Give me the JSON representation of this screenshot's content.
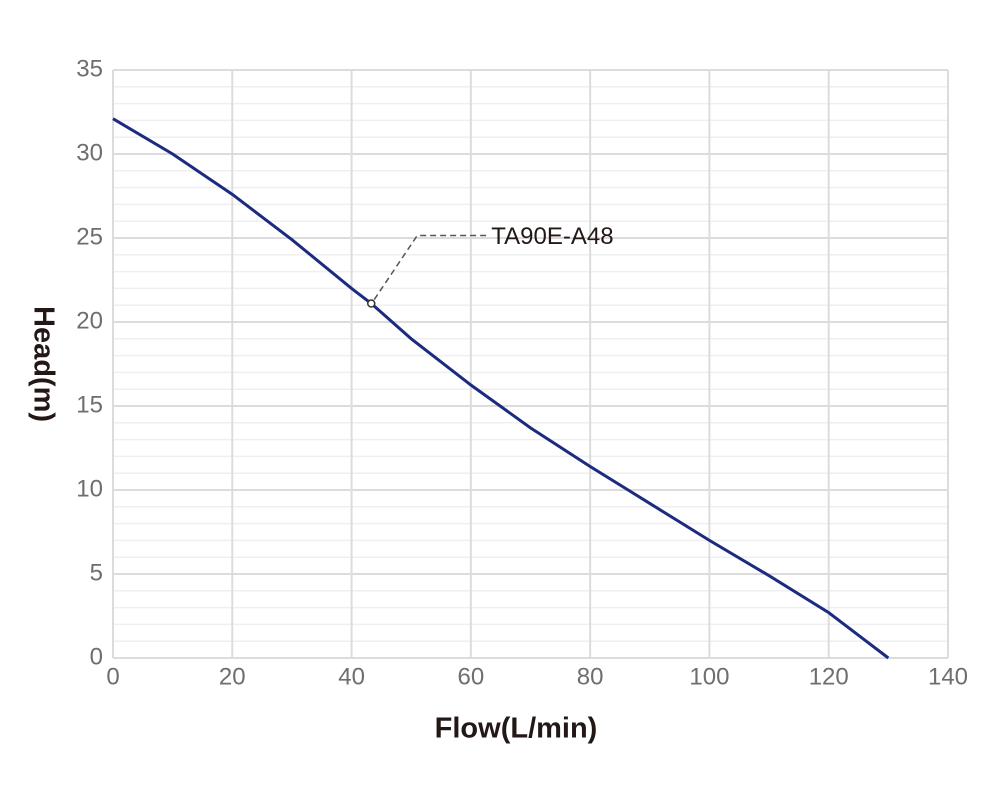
{
  "chart_data": {
    "type": "line",
    "xlabel": "Flow(L/min)",
    "ylabel": "Head(m)",
    "x": [
      0,
      10,
      20,
      30,
      40,
      43.3,
      50,
      60,
      70,
      80,
      90,
      100,
      110,
      120,
      130
    ],
    "values": [
      32.1,
      30.0,
      27.6,
      24.9,
      22.0,
      21.1,
      19.0,
      16.25,
      13.7,
      11.4,
      9.2,
      7.0,
      4.9,
      2.7,
      0
    ],
    "color": "#1c2a80",
    "annotation": {
      "text": "TA90E-A48",
      "x": 43.3,
      "y": 21.1
    },
    "xlim": [
      0,
      140
    ],
    "xticks": [
      0,
      20,
      40,
      60,
      80,
      100,
      120,
      140
    ],
    "ylim": [
      0,
      35
    ],
    "yticks": [
      0,
      5,
      10,
      15,
      20,
      25,
      30,
      35
    ],
    "y_minor_ticks": [
      1,
      2,
      3,
      4,
      6,
      7,
      8,
      9,
      11,
      12,
      13,
      14,
      16,
      17,
      18,
      19,
      21,
      22,
      23,
      24,
      26,
      27,
      28,
      29,
      31,
      32,
      33,
      34
    ],
    "grid": true
  }
}
